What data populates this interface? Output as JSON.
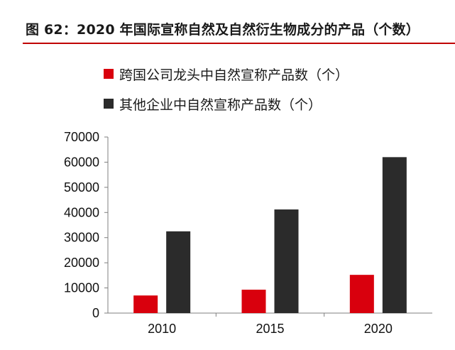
{
  "figure_title": "图 62：2020 年国际宣称自然及自然衍生物成分的产品（个数）",
  "colors": {
    "accent_rule": "#c00000",
    "series_1": "#d9000d",
    "series_2": "#2b2b2b"
  },
  "chart_data": {
    "type": "bar",
    "title": "",
    "xlabel": "",
    "ylabel": "",
    "categories": [
      "2010",
      "2015",
      "2020"
    ],
    "series": [
      {
        "name": "跨国公司龙头中自然宣称产品数（个）",
        "values": [
          7000,
          9300,
          15200
        ]
      },
      {
        "name": "其他企业中自然宣称产品数（个）",
        "values": [
          32500,
          41200,
          62000
        ]
      }
    ],
    "ylim": [
      0,
      70000
    ],
    "yticks": [
      "0",
      "10000",
      "20000",
      "30000",
      "40000",
      "50000",
      "60000",
      "70000"
    ],
    "grid": false,
    "legend_position": "top-left"
  }
}
